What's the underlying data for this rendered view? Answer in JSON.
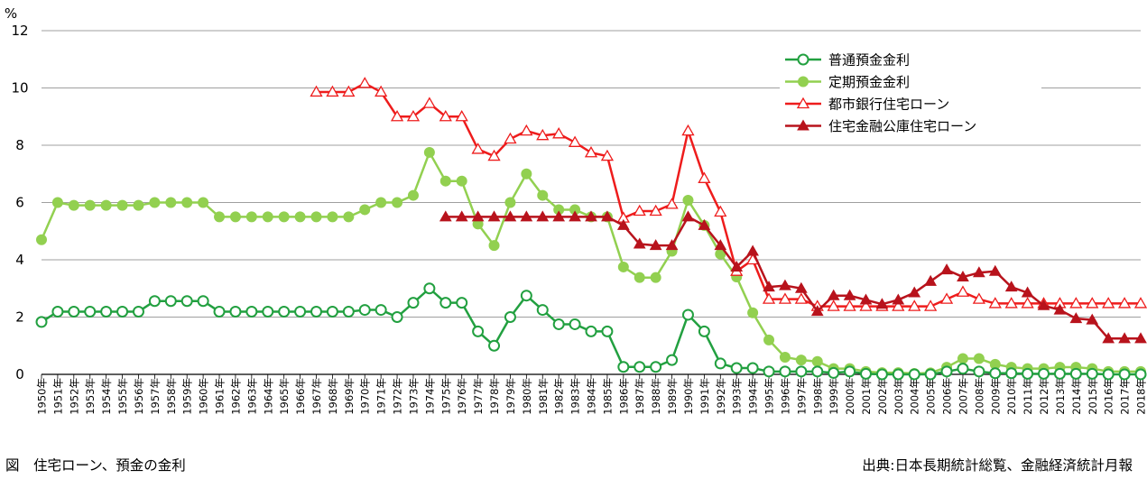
{
  "chart_data": {
    "type": "line",
    "unit_label": "%",
    "ylim": [
      0,
      12
    ],
    "yticks": [
      0,
      2,
      4,
      6,
      8,
      10,
      12
    ],
    "grid": true,
    "legend_position": "top-right",
    "x": [
      "1950年",
      "1951年",
      "1952年",
      "1953年",
      "1954年",
      "1955年",
      "1956年",
      "1957年",
      "1958年",
      "1959年",
      "1960年",
      "1961年",
      "1962年",
      "1963年",
      "1964年",
      "1965年",
      "1966年",
      "1967年",
      "1968年",
      "1969年",
      "1970年",
      "1971年",
      "1972年",
      "1973年",
      "1974年",
      "1975年",
      "1976年",
      "1977年",
      "1978年",
      "1979年",
      "1980年",
      "1981年",
      "1982年",
      "1983年",
      "1984年",
      "1985年",
      "1986年",
      "1987年",
      "1988年",
      "1989年",
      "1990年",
      "1991年",
      "1992年",
      "1993年",
      "1994年",
      "1995年",
      "1996年",
      "1997年",
      "1998年",
      "1999年",
      "2000年",
      "2001年",
      "2002年",
      "2003年",
      "2004年",
      "2005年",
      "2006年",
      "2007年",
      "2008年",
      "2009年",
      "2010年",
      "2011年",
      "2012年",
      "2013年",
      "2014年",
      "2015年",
      "2016年",
      "2017年",
      "2018年"
    ],
    "series": [
      {
        "name": "普通預金金利",
        "color": "#22a040",
        "marker": "open-circle",
        "values": [
          1.83,
          2.19,
          2.19,
          2.19,
          2.19,
          2.19,
          2.19,
          2.56,
          2.56,
          2.56,
          2.56,
          2.19,
          2.19,
          2.19,
          2.19,
          2.19,
          2.19,
          2.19,
          2.19,
          2.19,
          2.25,
          2.25,
          2.0,
          2.5,
          3.0,
          2.5,
          2.5,
          1.5,
          1.0,
          2.0,
          2.75,
          2.25,
          1.75,
          1.75,
          1.5,
          1.5,
          0.26,
          0.26,
          0.26,
          0.5,
          2.08,
          1.5,
          0.38,
          0.22,
          0.22,
          0.1,
          0.1,
          0.1,
          0.1,
          0.05,
          0.1,
          0.02,
          0.001,
          0.001,
          0.001,
          0.001,
          0.1,
          0.2,
          0.1,
          0.04,
          0.04,
          0.02,
          0.02,
          0.02,
          0.02,
          0.02,
          0.001,
          0.001,
          0.001
        ]
      },
      {
        "name": "定期預金金利",
        "color": "#92d050",
        "marker": "filled-circle",
        "values": [
          4.7,
          6.0,
          5.9,
          5.9,
          5.9,
          5.9,
          5.9,
          6.0,
          6.0,
          6.0,
          6.0,
          5.5,
          5.5,
          5.5,
          5.5,
          5.5,
          5.5,
          5.5,
          5.5,
          5.5,
          5.75,
          6.0,
          6.0,
          6.25,
          7.75,
          6.75,
          6.75,
          5.25,
          4.5,
          6.0,
          7.0,
          6.25,
          5.75,
          5.75,
          5.5,
          5.5,
          3.75,
          3.38,
          3.38,
          4.3,
          6.08,
          5.2,
          4.2,
          3.4,
          2.15,
          1.2,
          0.6,
          0.5,
          0.45,
          0.2,
          0.2,
          0.1,
          0.06,
          0.06,
          0.03,
          0.05,
          0.25,
          0.55,
          0.55,
          0.35,
          0.25,
          0.2,
          0.2,
          0.25,
          0.25,
          0.2,
          0.1,
          0.1,
          0.1
        ]
      },
      {
        "name": "都市銀行住宅ローン",
        "color": "#ee1c1c",
        "marker": "open-triangle",
        "values": [
          null,
          null,
          null,
          null,
          null,
          null,
          null,
          null,
          null,
          null,
          null,
          null,
          null,
          null,
          null,
          null,
          null,
          9.86,
          9.86,
          9.86,
          10.16,
          9.86,
          9.0,
          9.0,
          9.46,
          9.0,
          9.0,
          7.86,
          7.62,
          8.22,
          8.5,
          8.34,
          8.4,
          8.1,
          7.74,
          7.62,
          5.46,
          5.7,
          5.7,
          5.94,
          8.5,
          6.84,
          5.67,
          3.6,
          4.0,
          2.625,
          2.625,
          2.625,
          2.375,
          2.375,
          2.375,
          2.375,
          2.375,
          2.375,
          2.375,
          2.375,
          2.625,
          2.875,
          2.625,
          2.475,
          2.475,
          2.475,
          2.475,
          2.475,
          2.475,
          2.475,
          2.475,
          2.475,
          2.475
        ]
      },
      {
        "name": "住宅金融公庫住宅ローン",
        "color": "#b8131c",
        "marker": "filled-triangle",
        "values": [
          null,
          null,
          null,
          null,
          null,
          null,
          null,
          null,
          null,
          null,
          null,
          null,
          null,
          null,
          null,
          null,
          null,
          null,
          null,
          null,
          null,
          null,
          null,
          null,
          null,
          5.5,
          5.5,
          5.5,
          5.5,
          5.5,
          5.5,
          5.5,
          5.5,
          5.5,
          5.5,
          5.5,
          5.2,
          4.55,
          4.5,
          4.5,
          5.5,
          5.2,
          4.5,
          3.75,
          4.3,
          3.05,
          3.1,
          3.0,
          2.2,
          2.75,
          2.75,
          2.6,
          2.45,
          2.6,
          2.85,
          3.25,
          3.65,
          3.4,
          3.55,
          3.6,
          3.05,
          2.85,
          2.4,
          2.25,
          1.95,
          1.9,
          1.25,
          1.25,
          1.25
        ]
      }
    ]
  },
  "caption": {
    "left": "図　住宅ローン、預金の金利",
    "right": "出典:日本長期統計総覧、金融経済統計月報"
  }
}
